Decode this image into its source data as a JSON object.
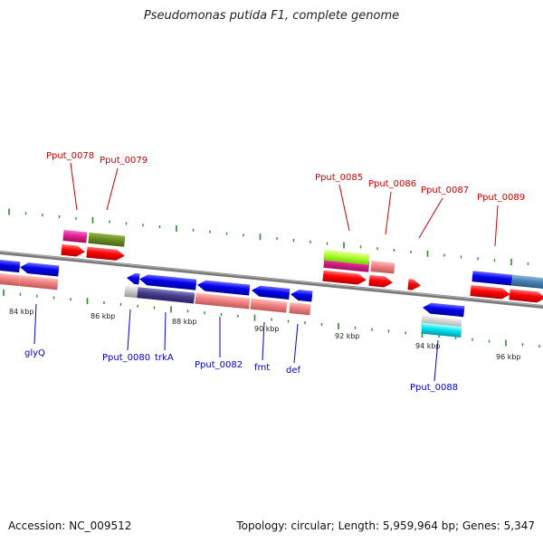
{
  "title": "Pseudomonas putida F1, complete genome",
  "footer": {
    "accession": "Accession: NC_009512",
    "summary": "Topology: circular; Length: 5,959,964 bp; Genes: 5,347"
  },
  "colors": {
    "forward_label": "#cc0000",
    "reverse_label": "#0000cc",
    "backbone": "#7a7a7a",
    "tick": "#2e8b2e"
  },
  "kbp_labels": [
    "84 kbp",
    "86 kbp",
    "88 kbp",
    "90 kbp",
    "92 kbp",
    "94 kbp",
    "96 kbp"
  ],
  "genes": [
    {
      "id": "glyQ",
      "label": "glyQ",
      "strand": "reverse"
    },
    {
      "id": "Pput_0078",
      "label": "Pput_0078",
      "strand": "forward"
    },
    {
      "id": "Pput_0079",
      "label": "Pput_0079",
      "strand": "forward"
    },
    {
      "id": "Pput_0080",
      "label": "Pput_0080",
      "strand": "reverse"
    },
    {
      "id": "trkA",
      "label": "trkA",
      "strand": "reverse"
    },
    {
      "id": "Pput_0082",
      "label": "Pput_0082",
      "strand": "reverse"
    },
    {
      "id": "fmt",
      "label": "fmt",
      "strand": "reverse"
    },
    {
      "id": "def",
      "label": "def",
      "strand": "reverse"
    },
    {
      "id": "Pput_0085",
      "label": "Pput_0085",
      "strand": "forward"
    },
    {
      "id": "Pput_0086",
      "label": "Pput_0086",
      "strand": "forward"
    },
    {
      "id": "Pput_0087",
      "label": "Pput_0087",
      "strand": "forward"
    },
    {
      "id": "Pput_0088",
      "label": "Pput_0088",
      "strand": "reverse"
    },
    {
      "id": "Pput_0089",
      "label": "Pput_0089",
      "strand": "forward"
    }
  ]
}
